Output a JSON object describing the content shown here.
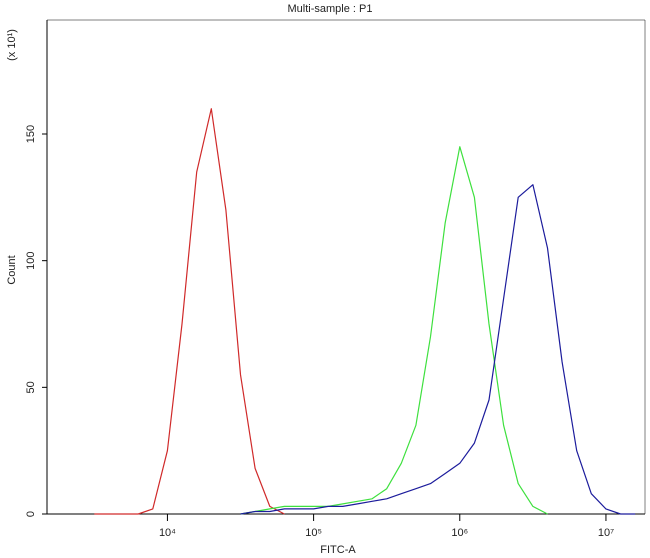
{
  "chart_data": {
    "type": "line",
    "title": "Multi-sample : P1",
    "x_label": "FITC-A",
    "y_label": "Count",
    "y_unit_note": "(x 10¹)",
    "x_scale": "log",
    "xlim": [
      1500,
      18500000
    ],
    "ylim": [
      0,
      195
    ],
    "xticks": [
      {
        "value": 10000,
        "label": "10⁴"
      },
      {
        "value": 100000,
        "label": "10⁵"
      },
      {
        "value": 1000000,
        "label": "10⁶"
      },
      {
        "value": 10000000,
        "label": "10⁷"
      }
    ],
    "yticks": [
      0,
      50,
      100,
      150
    ],
    "grid": false,
    "x": [
      3162,
      3981,
      5012,
      6310,
      7943,
      10000,
      12589,
      15849,
      19953,
      25119,
      31623,
      39811,
      50119,
      63096,
      79433,
      100000,
      125893,
      158489,
      199526,
      251189,
      316228,
      398107,
      501187,
      630957,
      794328,
      1000000,
      1258925,
      1584893,
      1995262,
      2511886,
      3162278,
      3981072,
      5011872,
      6309573,
      7943282,
      10000000,
      12589254,
      15848932
    ],
    "series": [
      {
        "color": "#d02a2a",
        "values": [
          0,
          0,
          0,
          0,
          2,
          25,
          75,
          135,
          160,
          120,
          55,
          18,
          3,
          0,
          null,
          null,
          null,
          null,
          null,
          null,
          null,
          null,
          null,
          null,
          null,
          null,
          null,
          null,
          null,
          null,
          null,
          null,
          null,
          null,
          null,
          null,
          null,
          null
        ]
      },
      {
        "color": "#3ee03e",
        "values": [
          null,
          null,
          null,
          null,
          null,
          null,
          null,
          null,
          null,
          null,
          0,
          1,
          2,
          3,
          3,
          3,
          3,
          4,
          5,
          6,
          10,
          20,
          35,
          70,
          115,
          145,
          125,
          75,
          35,
          12,
          3,
          0,
          null,
          null,
          null,
          null,
          null,
          null
        ]
      },
      {
        "color": "#1c1c9c",
        "values": [
          null,
          null,
          null,
          null,
          null,
          null,
          null,
          null,
          null,
          null,
          0,
          1,
          1,
          2,
          2,
          2,
          3,
          3,
          4,
          5,
          6,
          8,
          10,
          12,
          16,
          20,
          28,
          45,
          85,
          125,
          130,
          105,
          60,
          25,
          8,
          2,
          0,
          0
        ]
      }
    ]
  }
}
